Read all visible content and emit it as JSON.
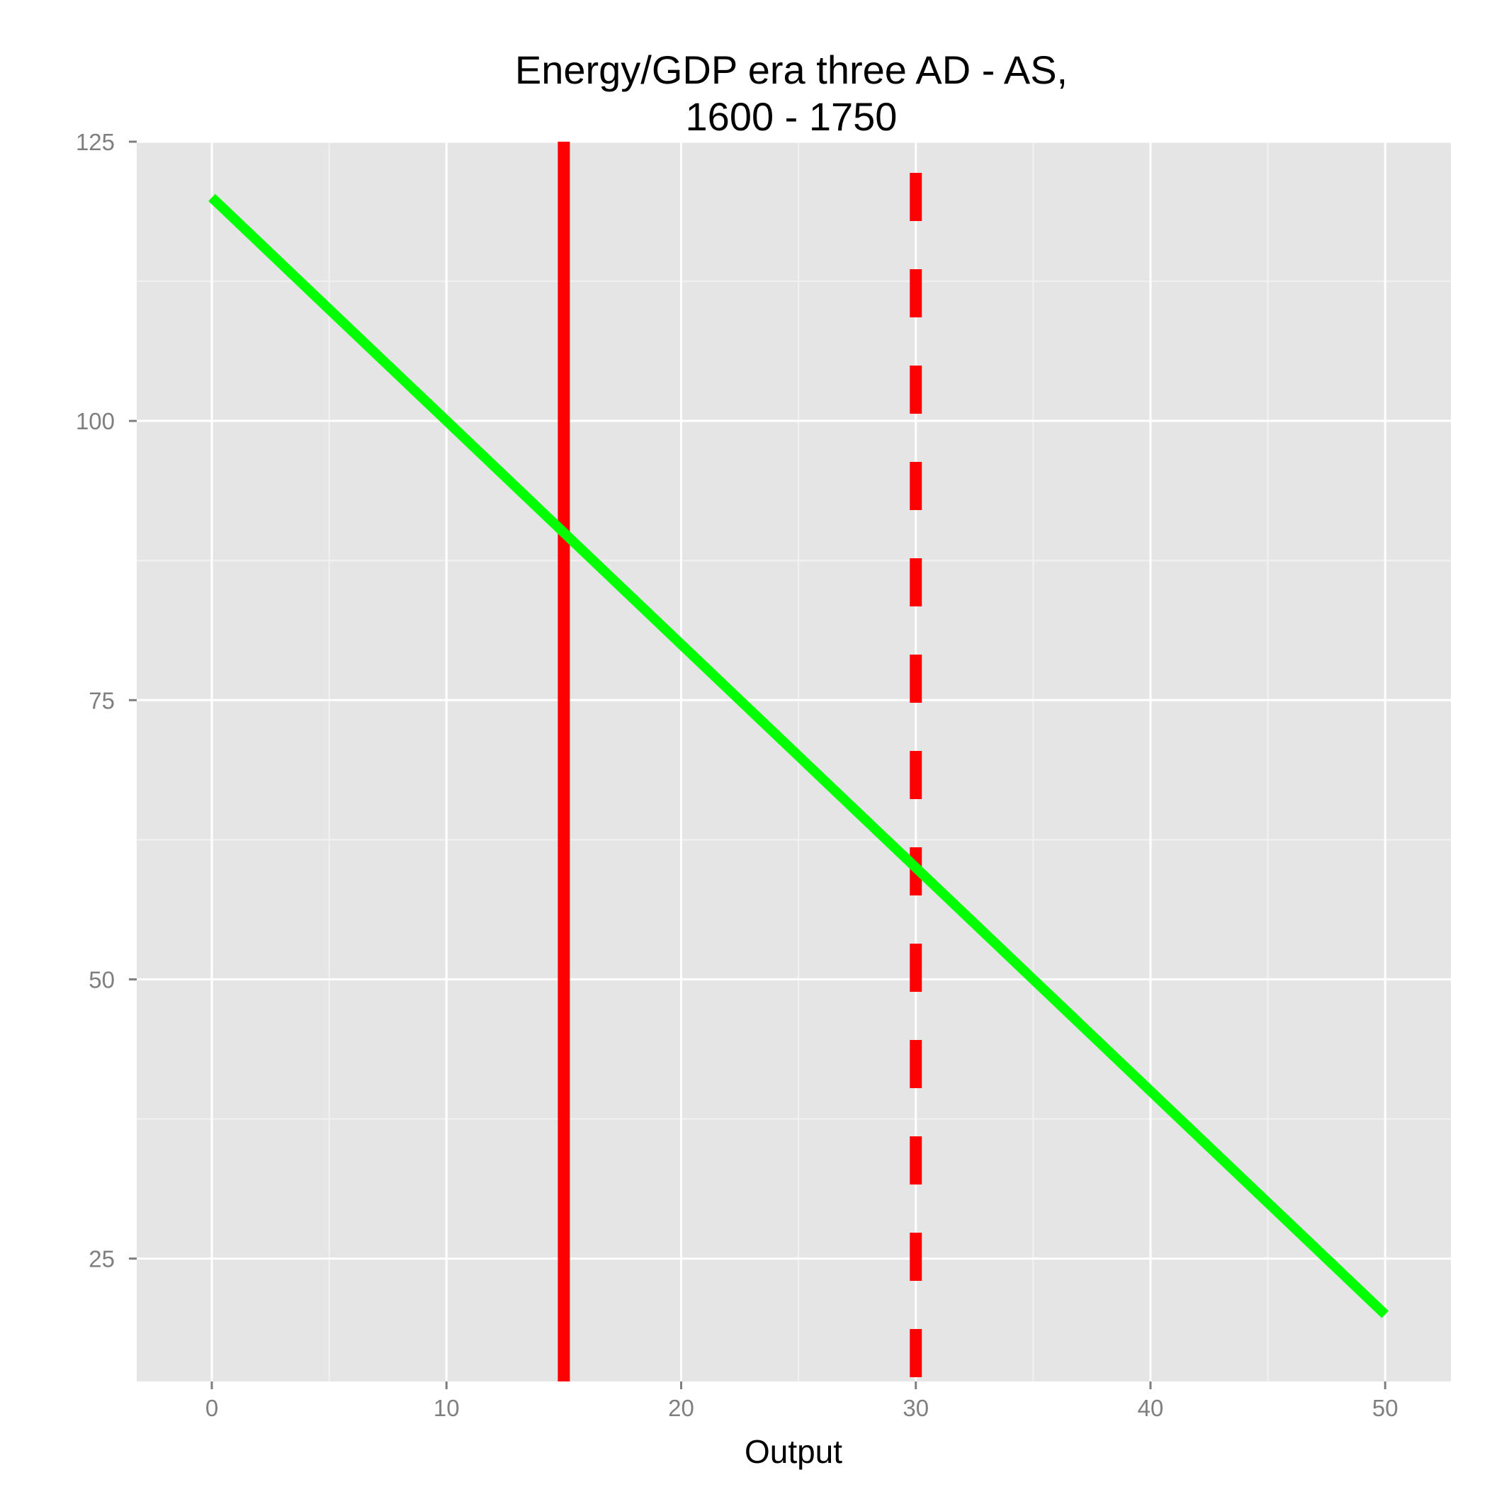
{
  "chart_data": {
    "type": "line",
    "title_lines": [
      "Energy/GDP era three AD - AS,",
      "1600 - 1750"
    ],
    "xlabel": "Output",
    "ylabel": "",
    "xlim": [
      -3.2,
      52.8
    ],
    "ylim": [
      14,
      125
    ],
    "x_ticks": [
      0,
      10,
      20,
      30,
      40,
      50
    ],
    "x_tick_labels": [
      "0",
      "10",
      "20",
      "30",
      "40",
      "50"
    ],
    "y_ticks": [
      25,
      50,
      75,
      100,
      125
    ],
    "y_tick_labels": [
      "25",
      "50",
      "75",
      "100",
      "125"
    ],
    "grid": true,
    "legend": "none",
    "series": [
      {
        "color": "#00ff00",
        "style": "solid",
        "x": [
          0,
          5,
          10,
          15,
          20,
          25,
          30,
          35,
          40,
          45,
          50
        ],
        "y": [
          120,
          110,
          100,
          90,
          80,
          70,
          60,
          50,
          40,
          30,
          20
        ]
      }
    ],
    "vlines": [
      {
        "x": 15,
        "color": "#ff0000",
        "style": "solid"
      },
      {
        "x": 30,
        "color": "#ff0000",
        "style": "dashed"
      }
    ]
  }
}
